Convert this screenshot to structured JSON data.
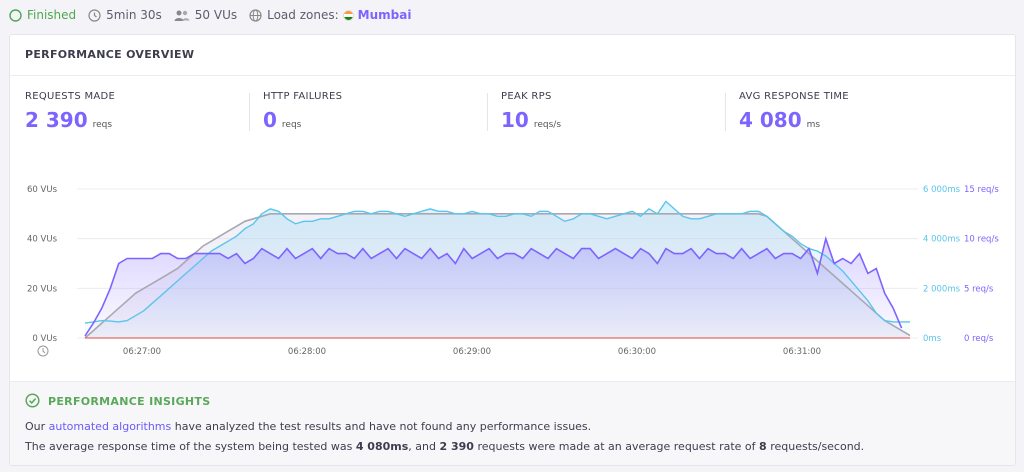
{
  "topbar": {
    "status": "Finished",
    "duration": "5min 30s",
    "vus": "50 VUs",
    "load_zones_label": "Load zones:",
    "zone": "Mumbai"
  },
  "overview": {
    "title": "PERFORMANCE OVERVIEW",
    "metrics": [
      {
        "label": "REQUESTS MADE",
        "value": "2 390",
        "unit": "reqs"
      },
      {
        "label": "HTTP FAILURES",
        "value": "0",
        "unit": "reqs"
      },
      {
        "label": "PEAK RPS",
        "value": "10",
        "unit": "reqs/s"
      },
      {
        "label": "AVG RESPONSE TIME",
        "value": "4 080",
        "unit": "ms"
      }
    ]
  },
  "chart_data": {
    "type": "line",
    "x_ticks": [
      "06:27:00",
      "06:28:00",
      "06:29:00",
      "06:30:00",
      "06:31:00"
    ],
    "y_left_ticks": [
      "0 VUs",
      "20 VUs",
      "40 VUs",
      "60 VUs"
    ],
    "y_right_ms_ticks": [
      "0ms",
      "2 000ms",
      "4 000ms",
      "6 000ms"
    ],
    "y_right_rps_ticks": [
      "0 req/s",
      "5 req/s",
      "10 req/s",
      "15 req/s"
    ],
    "ylim_vus": [
      0,
      60
    ],
    "ylim_ms": [
      0,
      6000
    ],
    "ylim_rps": [
      0,
      15
    ],
    "colors": {
      "vus": "#a8a8b4",
      "response_time": "#5bc5ec",
      "rps": "#7d64ff",
      "failures": "#e86a6a"
    },
    "series": [
      {
        "metric": "vus",
        "values": [
          0,
          3,
          6,
          9,
          12,
          15,
          18,
          20,
          22,
          24,
          26,
          28,
          31,
          34,
          37,
          39,
          41,
          43,
          45,
          47,
          48,
          49,
          50,
          50,
          50,
          50,
          50,
          50,
          50,
          50,
          50,
          50,
          50,
          50,
          50,
          50,
          50,
          50,
          50,
          50,
          50,
          50,
          50,
          50,
          50,
          50,
          50,
          50,
          50,
          50,
          50,
          50,
          50,
          50,
          50,
          50,
          50,
          50,
          50,
          50,
          50,
          50,
          50,
          50,
          50,
          50,
          50,
          50,
          50,
          50,
          50,
          50,
          50,
          50,
          50,
          50,
          50,
          50,
          50,
          50,
          50,
          49,
          46,
          43,
          40,
          37,
          34,
          31,
          28,
          25,
          22,
          19,
          16,
          13,
          10,
          7,
          5,
          3,
          1
        ]
      },
      {
        "metric": "response_time_ms",
        "values": [
          600,
          650,
          700,
          680,
          650,
          700,
          900,
          1100,
          1400,
          1700,
          2000,
          2300,
          2600,
          2900,
          3200,
          3500,
          3700,
          3900,
          4100,
          4400,
          4600,
          5000,
          5200,
          5100,
          4800,
          4600,
          4700,
          4700,
          4800,
          4800,
          4900,
          5000,
          5100,
          5100,
          5000,
          5100,
          5100,
          5000,
          4900,
          5000,
          5100,
          5200,
          5100,
          5100,
          5000,
          5000,
          5100,
          5000,
          5000,
          4900,
          4900,
          5000,
          5000,
          4900,
          5100,
          5100,
          4900,
          4700,
          4800,
          5000,
          5000,
          4900,
          4800,
          4900,
          5000,
          5100,
          4900,
          5200,
          5000,
          5500,
          5200,
          4900,
          4800,
          4800,
          4900,
          5000,
          5000,
          5000,
          5000,
          5100,
          5100,
          4900,
          4600,
          4300,
          4100,
          3800,
          3600,
          3500,
          3300,
          3000,
          2700,
          2300,
          1900,
          1500,
          1000,
          700,
          650,
          650,
          650
        ]
      },
      {
        "metric": "rps",
        "values": [
          0.2,
          1.5,
          3,
          5,
          7.5,
          8,
          8,
          8,
          8,
          8.5,
          8.5,
          8,
          8,
          8.5,
          8.5,
          8.5,
          8.5,
          8,
          8.5,
          7.5,
          8,
          9,
          8.5,
          8,
          9,
          8,
          8.5,
          9,
          8,
          9,
          8.5,
          8.5,
          8,
          9,
          8,
          8.5,
          9,
          8,
          9,
          8.5,
          8,
          9,
          8,
          8.5,
          7.5,
          9,
          8,
          8.5,
          9,
          8,
          8.5,
          8.5,
          8,
          9,
          8.5,
          8,
          9,
          8.5,
          8,
          9,
          9,
          8,
          8.5,
          9,
          8.5,
          8,
          9,
          8.5,
          7.5,
          9,
          8.5,
          8.5,
          9,
          8,
          9,
          8.5,
          8.5,
          8,
          9,
          8,
          8.5,
          9,
          8,
          8.5,
          8.5,
          8,
          9,
          6.5,
          10,
          7.5,
          8,
          7.5,
          8.5,
          6.5,
          7,
          4.5,
          3,
          1
        ]
      },
      {
        "metric": "http_failures",
        "values": [
          0,
          0
        ]
      }
    ]
  },
  "insights": {
    "title": "PERFORMANCE INSIGHTS",
    "line1_prefix": "Our",
    "line1_link": "automated algorithms",
    "line1_suffix": "have analyzed the test results and have not found any performance issues.",
    "line2_a": "The average response time of the system being tested was",
    "line2_ms": "4 080ms",
    "line2_b": ", and",
    "line2_reqs": "2 390",
    "line2_c": "requests were made at an average request rate of",
    "line2_rate": "8",
    "line2_d": "requests/second."
  }
}
